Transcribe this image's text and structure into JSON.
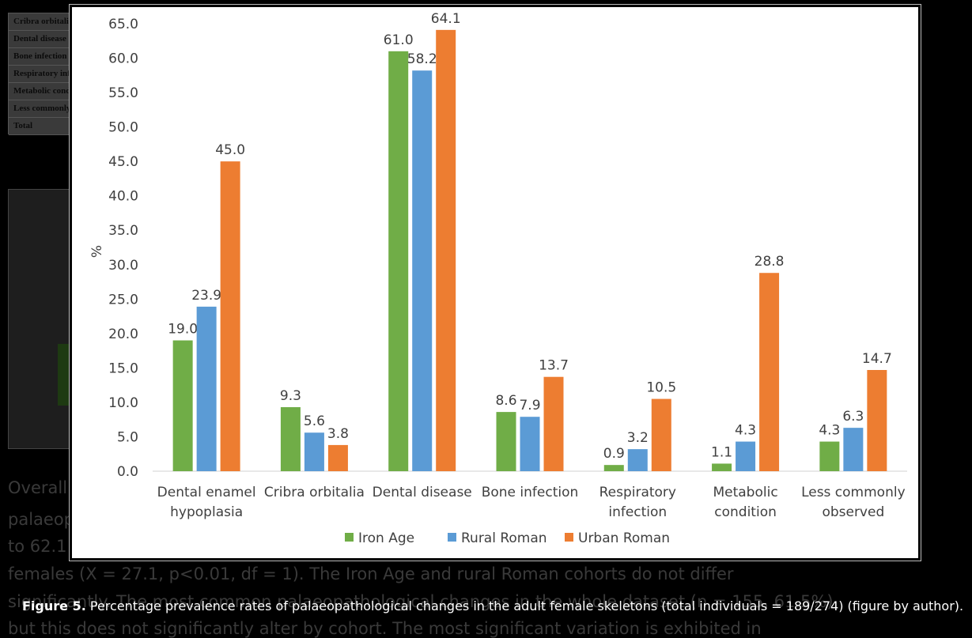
{
  "background": {
    "table_rows": [
      "Cribra orbitalia",
      "Dental disease",
      "Bone infection",
      "Respiratory infection",
      "Metabolic condition",
      "Less commonly observed",
      "Total"
    ],
    "text_lines": [
      "Overall",
      "palaeop",
      "to 62.1",
      "females (X  = 27.1, p<0.01, df = 1). The Iron Age and rural Roman cohorts do not differ",
      "significantly. The most common palaeopathological changes in the whole dataset (n = 155, 61.5%)",
      "but this does not significantly alter by cohort. The most significant variation is exhibited in"
    ]
  },
  "caption": {
    "label": "Figure 5.",
    "text": " Percentage prevalence rates of palaeopathological changes in the adult female skeletons (total individuals = 189/274) (figure by author)."
  },
  "chart_data": {
    "type": "bar",
    "ylabel": "%",
    "ylim": [
      0,
      65
    ],
    "yticks": [
      "0.0",
      "5.0",
      "10.0",
      "15.0",
      "20.0",
      "25.0",
      "30.0",
      "35.0",
      "40.0",
      "45.0",
      "50.0",
      "55.0",
      "60.0",
      "65.0"
    ],
    "grid": false,
    "legend_position": "bottom",
    "categories": [
      [
        "Dental enamel",
        "hypoplasia"
      ],
      [
        "Cribra orbitalia"
      ],
      [
        "Dental disease"
      ],
      [
        "Bone infection"
      ],
      [
        "Respiratory",
        "infection"
      ],
      [
        "Metabolic",
        "condition"
      ],
      [
        "Less commonly",
        "observed"
      ]
    ],
    "series": [
      {
        "name": "Iron Age",
        "color": "#70ad47",
        "values": [
          19.0,
          9.3,
          61.0,
          8.6,
          0.9,
          1.1,
          4.3
        ],
        "labels": [
          "19.0",
          "9.3",
          "61.0",
          "8.6",
          "0.9",
          "1.1",
          "4.3"
        ]
      },
      {
        "name": "Rural Roman",
        "color": "#5b9bd5",
        "values": [
          23.9,
          5.6,
          58.2,
          7.9,
          3.2,
          4.3,
          6.3
        ],
        "labels": [
          "23.9",
          "5.6",
          "58.2",
          "7.9",
          "3.2",
          "4.3",
          "6.3"
        ]
      },
      {
        "name": "Urban Roman",
        "color": "#ed7d31",
        "values": [
          45.0,
          3.8,
          64.1,
          13.7,
          10.5,
          28.8,
          14.7
        ],
        "labels": [
          "45.0",
          "3.8",
          "64.1",
          "13.7",
          "10.5",
          "28.8",
          "14.7"
        ]
      }
    ]
  }
}
